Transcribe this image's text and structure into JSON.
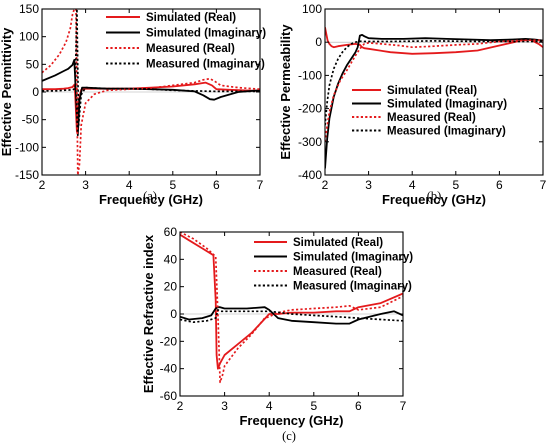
{
  "colors": {
    "real": "#e41a1c",
    "imaginary": "#000000"
  },
  "chart_data": [
    {
      "type": "line",
      "panel_caption": "(a)",
      "xlabel": "Frequency (GHz)",
      "ylabel": "Effective Permittivity",
      "xlim": [
        2,
        7
      ],
      "ylim": [
        -150,
        150
      ],
      "xticks": [
        2,
        3,
        4,
        5,
        6,
        7
      ],
      "yticks": [
        -150,
        -100,
        -50,
        0,
        50,
        100,
        150
      ],
      "legend_position": "top-right",
      "series": [
        {
          "name": "Simulated (Real)",
          "style": "solid",
          "color": "real",
          "x": [
            2.0,
            2.3,
            2.5,
            2.6,
            2.7,
            2.75,
            2.8,
            2.85,
            2.9,
            3.0,
            3.5,
            4.0,
            4.5,
            5.0,
            5.5,
            5.75,
            5.9,
            6.0,
            6.3,
            6.6,
            7.0
          ],
          "y": [
            5,
            5,
            6,
            7,
            9,
            14,
            -72,
            -12,
            4,
            6,
            6,
            6,
            8,
            10,
            14,
            17,
            12,
            5,
            4,
            3,
            2
          ]
        },
        {
          "name": "Simulated (Imaginary)",
          "style": "solid",
          "color": "imaginary",
          "x": [
            2.0,
            2.3,
            2.5,
            2.6,
            2.7,
            2.74,
            2.78,
            2.82,
            2.86,
            2.92,
            3.0,
            3.5,
            4.0,
            4.5,
            5.0,
            5.5,
            5.7,
            5.85,
            5.95,
            6.1,
            6.5,
            7.0
          ],
          "y": [
            20,
            30,
            38,
            42,
            49,
            58,
            -5,
            -78,
            -15,
            8,
            8,
            6,
            6,
            5,
            4,
            1,
            -6,
            -13,
            -14,
            -9,
            0,
            3
          ]
        },
        {
          "name": "Measured (Real)",
          "style": "dotted",
          "color": "real",
          "x": [
            2.0,
            2.2,
            2.4,
            2.55,
            2.65,
            2.7,
            2.74,
            2.78,
            2.82,
            2.86,
            2.9,
            3.0,
            3.2,
            3.5,
            4.0,
            4.5,
            5.0,
            5.5,
            5.7,
            5.85,
            5.95,
            6.1,
            6.5,
            7.0
          ],
          "y": [
            35,
            48,
            68,
            90,
            115,
            140,
            150,
            150,
            -150,
            -130,
            -60,
            -20,
            -4,
            3,
            5,
            7,
            12,
            17,
            22,
            24,
            20,
            12,
            8,
            5
          ]
        },
        {
          "name": "Measured (Imaginary)",
          "style": "dotted",
          "color": "imaginary",
          "x": [
            2.0,
            2.3,
            2.5,
            2.7,
            2.76,
            2.8,
            2.84,
            2.9,
            3.0,
            3.5,
            4.0,
            4.5,
            5.0,
            5.5,
            6.0,
            6.5,
            7.0
          ],
          "y": [
            2,
            2,
            3,
            4,
            6,
            150,
            -60,
            -5,
            8,
            6,
            6,
            5,
            3,
            2,
            1,
            1,
            1
          ]
        }
      ]
    },
    {
      "type": "line",
      "panel_caption": "(b)",
      "xlabel": "Frequency (GHz)",
      "ylabel": "Effective Permeability",
      "xlim": [
        2,
        7
      ],
      "ylim": [
        -400,
        100
      ],
      "xticks": [
        2,
        3,
        4,
        5,
        6,
        7
      ],
      "yticks": [
        -400,
        -300,
        -200,
        -100,
        0,
        100
      ],
      "legend_position": "center-right",
      "series": [
        {
          "name": "Simulated (Real)",
          "style": "solid",
          "color": "real",
          "x": [
            2.0,
            2.03,
            2.06,
            2.1,
            2.15,
            2.2,
            2.3,
            2.5,
            2.7,
            2.8,
            2.85,
            2.9,
            3.0,
            3.5,
            4.0,
            4.5,
            5.0,
            5.5,
            6.0,
            6.5,
            6.7,
            6.9,
            7.0
          ],
          "y": [
            45,
            25,
            5,
            -5,
            -12,
            -15,
            -12,
            -8,
            -5,
            -8,
            -15,
            -18,
            -20,
            -30,
            -35,
            -33,
            -30,
            -25,
            -10,
            5,
            8,
            -5,
            -15
          ]
        },
        {
          "name": "Simulated (Imaginary)",
          "style": "solid",
          "color": "imaginary",
          "x": [
            2.0,
            2.05,
            2.1,
            2.2,
            2.3,
            2.4,
            2.5,
            2.6,
            2.7,
            2.75,
            2.8,
            2.85,
            2.9,
            3.0,
            3.3,
            3.8,
            4.3,
            4.8,
            5.3,
            5.8,
            6.3,
            6.6,
            6.8,
            7.0
          ],
          "y": [
            -380,
            -290,
            -230,
            -165,
            -125,
            -95,
            -70,
            -50,
            -30,
            -15,
            20,
            22,
            18,
            12,
            10,
            10,
            12,
            10,
            8,
            6,
            8,
            10,
            8,
            5
          ]
        },
        {
          "name": "Measured (Real)",
          "style": "dotted",
          "color": "real",
          "x": [
            2.0,
            2.05,
            2.1,
            2.2,
            2.35,
            2.5,
            2.7,
            2.8,
            2.9,
            3.0,
            3.3,
            3.7,
            4.0,
            4.5,
            5.0,
            5.5,
            6.0,
            6.5,
            6.8,
            7.0
          ],
          "y": [
            -300,
            -250,
            -210,
            -160,
            -115,
            -85,
            -40,
            -20,
            -5,
            -2,
            -5,
            -10,
            -15,
            -12,
            -8,
            -5,
            2,
            5,
            6,
            5
          ]
        },
        {
          "name": "Measured (Imaginary)",
          "style": "dotted",
          "color": "imaginary",
          "x": [
            2.0,
            2.05,
            2.1,
            2.2,
            2.3,
            2.4,
            2.5,
            2.6,
            2.7,
            2.8,
            2.9,
            3.0,
            3.5,
            4.0,
            4.5,
            5.0,
            5.5,
            6.0,
            6.5,
            7.0
          ],
          "y": [
            -250,
            -180,
            -130,
            -80,
            -50,
            -30,
            -15,
            -5,
            0,
            3,
            2,
            2,
            2,
            3,
            4,
            3,
            2,
            2,
            2,
            2
          ]
        }
      ]
    },
    {
      "type": "line",
      "panel_caption": "(c)",
      "xlabel": "Frequency (GHz)",
      "ylabel": "Effective Refractive index",
      "xlim": [
        2,
        7
      ],
      "ylim": [
        -60,
        60
      ],
      "xticks": [
        2,
        3,
        4,
        5,
        6,
        7
      ],
      "yticks": [
        -60,
        -40,
        -20,
        0,
        20,
        40,
        60
      ],
      "legend_position": "top-right",
      "series": [
        {
          "name": "Simulated (Real)",
          "style": "solid",
          "color": "real",
          "x": [
            2.0,
            2.2,
            2.5,
            2.75,
            2.8,
            2.82,
            2.85,
            2.9,
            3.0,
            3.3,
            3.6,
            3.8,
            4.0,
            4.2,
            4.5,
            5.0,
            5.5,
            5.8,
            6.0,
            6.5,
            7.0
          ],
          "y": [
            58,
            54,
            48,
            43,
            10,
            -30,
            -40,
            -36,
            -30,
            -22,
            -14,
            -7,
            0,
            0,
            1,
            1,
            2,
            2,
            5,
            8,
            15
          ]
        },
        {
          "name": "Simulated (Imaginary)",
          "style": "solid",
          "color": "imaginary",
          "x": [
            2.0,
            2.2,
            2.5,
            2.7,
            2.8,
            2.85,
            2.9,
            3.0,
            3.5,
            3.9,
            4.0,
            4.2,
            4.5,
            5.0,
            5.5,
            5.8,
            6.0,
            6.5,
            6.8,
            7.0
          ],
          "y": [
            -2,
            -4,
            -3,
            -1,
            4,
            5,
            5,
            4,
            4,
            5,
            3,
            -3,
            -5,
            -6,
            -7,
            -7,
            -4,
            0,
            2,
            -1
          ]
        },
        {
          "name": "Measured (Real)",
          "style": "dotted",
          "color": "real",
          "x": [
            2.0,
            2.3,
            2.6,
            2.8,
            2.85,
            2.9,
            2.95,
            3.0,
            3.3,
            3.6,
            3.9,
            4.0,
            4.2,
            4.5,
            5.0,
            5.5,
            5.8,
            6.0,
            6.5,
            7.0
          ],
          "y": [
            60,
            55,
            48,
            42,
            0,
            -50,
            -45,
            -38,
            -25,
            -15,
            -3,
            -2,
            1,
            3,
            4,
            5,
            6,
            3,
            5,
            13
          ]
        },
        {
          "name": "Measured (Imaginary)",
          "style": "dotted",
          "color": "imaginary",
          "x": [
            2.0,
            2.3,
            2.6,
            2.8,
            2.85,
            2.9,
            3.0,
            3.5,
            4.0,
            4.5,
            5.0,
            5.5,
            6.0,
            6.5,
            7.0
          ],
          "y": [
            -4,
            -6,
            -5,
            -3,
            3,
            2,
            2,
            2,
            2,
            0,
            -1,
            -2,
            -3,
            -4,
            -5
          ]
        }
      ]
    }
  ]
}
